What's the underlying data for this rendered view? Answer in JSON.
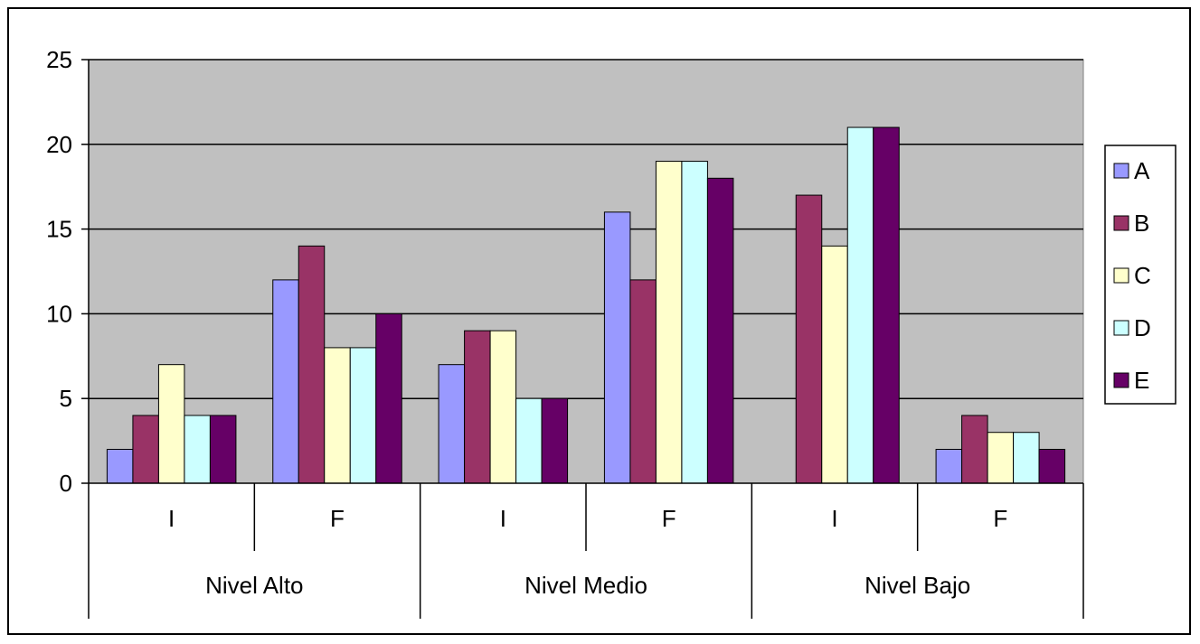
{
  "chart_data": {
    "type": "bar",
    "title": "",
    "xlabel": "",
    "ylabel": "",
    "ylim": [
      0,
      25
    ],
    "yticks": [
      0,
      5,
      10,
      15,
      20,
      25
    ],
    "grid": true,
    "legend_position": "right",
    "plot_background": "#c0c0c0",
    "groups": [
      {
        "label": "Nivel Alto",
        "categories": [
          "I",
          "F"
        ]
      },
      {
        "label": "Nivel Medio",
        "categories": [
          "I",
          "F"
        ]
      },
      {
        "label": "Nivel Bajo",
        "categories": [
          "I",
          "F"
        ]
      }
    ],
    "categories": [
      "I",
      "F",
      "I",
      "F",
      "I",
      "F"
    ],
    "series": [
      {
        "name": "A",
        "color": "#9999ff",
        "values": [
          2,
          12,
          7,
          16,
          0,
          2
        ]
      },
      {
        "name": "B",
        "color": "#993366",
        "values": [
          4,
          14,
          9,
          12,
          17,
          4
        ]
      },
      {
        "name": "C",
        "color": "#ffffcc",
        "values": [
          7,
          8,
          9,
          19,
          14,
          3
        ]
      },
      {
        "name": "D",
        "color": "#ccffff",
        "values": [
          4,
          8,
          5,
          19,
          21,
          3
        ]
      },
      {
        "name": "E",
        "color": "#660066",
        "values": [
          4,
          10,
          5,
          18,
          21,
          2
        ]
      }
    ]
  }
}
